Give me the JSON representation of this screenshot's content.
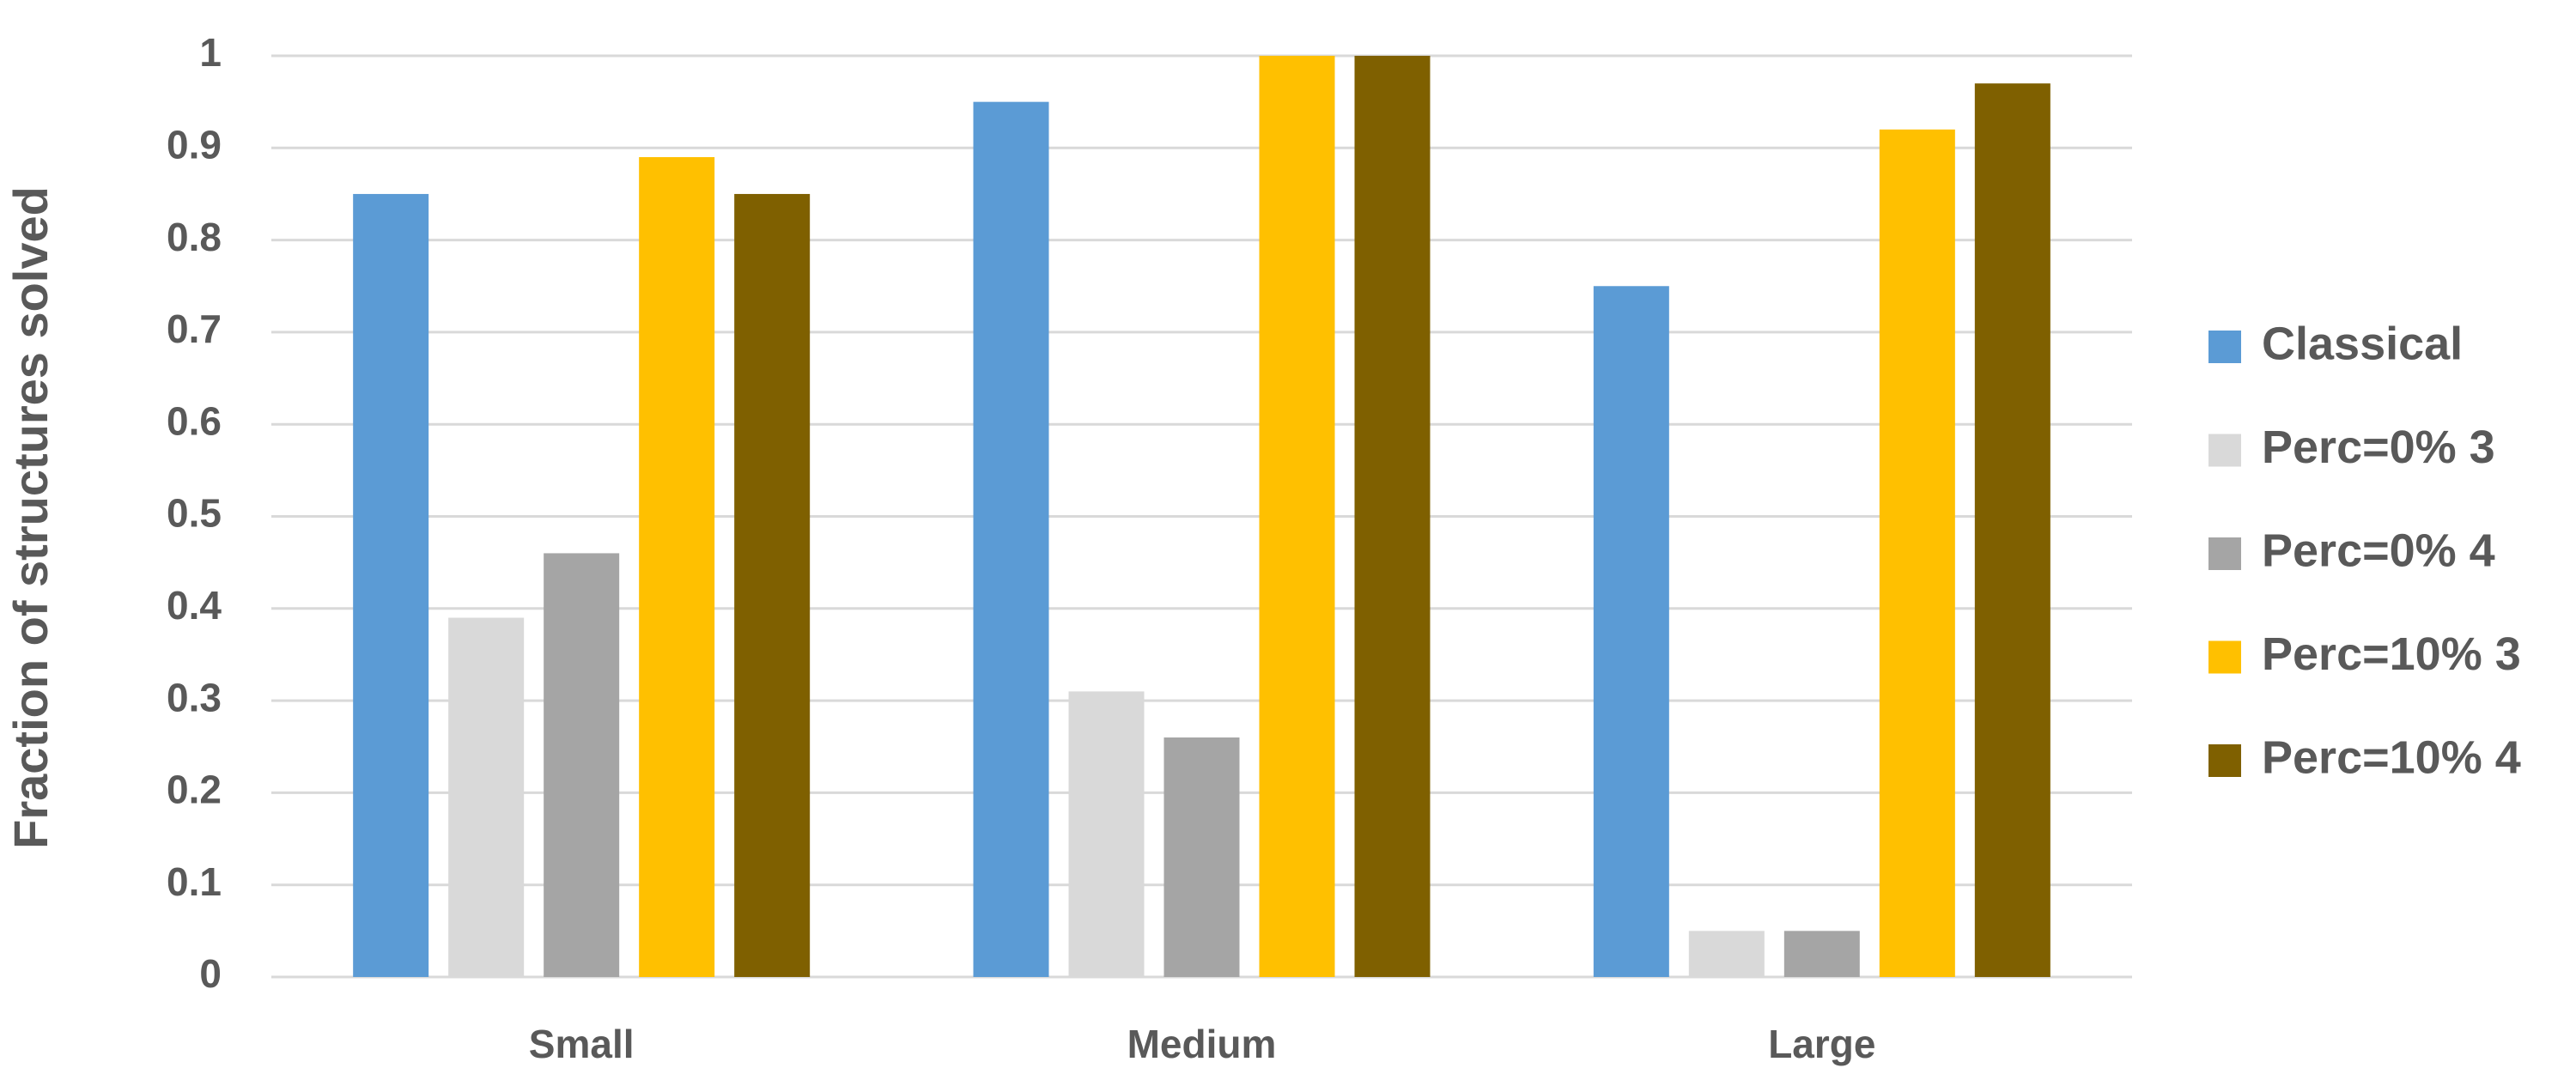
{
  "chart_data": {
    "type": "bar",
    "y_label": "Fraction of structures solved",
    "categories": [
      "Small",
      "Medium",
      "Large"
    ],
    "series": [
      {
        "name": "Classical",
        "color": "#5b9bd5",
        "values": [
          0.85,
          0.95,
          0.75
        ]
      },
      {
        "name": "Perc=0% 3",
        "color": "#d9d9d9",
        "values": [
          0.39,
          0.31,
          0.05
        ]
      },
      {
        "name": "Perc=0% 4",
        "color": "#a5a5a5",
        "values": [
          0.46,
          0.26,
          0.05
        ]
      },
      {
        "name": "Perc=10% 3",
        "color": "#ffc000",
        "values": [
          0.89,
          1,
          0.92
        ]
      },
      {
        "name": "Perc=10% 4",
        "color": "#7f6000",
        "values": [
          0.85,
          1,
          0.97
        ]
      }
    ],
    "ylim": [
      0,
      1
    ],
    "yticks": [
      0,
      0.1,
      0.2,
      0.3,
      0.4,
      0.5,
      0.6,
      0.7,
      0.8,
      0.9,
      1
    ],
    "grid": true,
    "legend": "right"
  }
}
